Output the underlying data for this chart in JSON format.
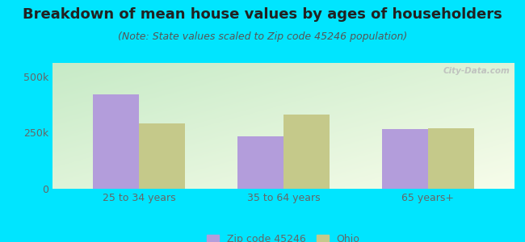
{
  "title": "Breakdown of mean house values by ages of householders",
  "subtitle": "(Note: State values scaled to Zip code 45246 population)",
  "categories": [
    "25 to 34 years",
    "35 to 64 years",
    "65 years+"
  ],
  "zip_values": [
    420000,
    235000,
    265000
  ],
  "ohio_values": [
    290000,
    330000,
    270000
  ],
  "zip_color": "#b39ddb",
  "ohio_color": "#c5c98a",
  "background_color": "#00e5ff",
  "ylim": [
    0,
    560000
  ],
  "yticks": [
    0,
    250000,
    500000
  ],
  "ytick_labels": [
    "0",
    "250k",
    "500k"
  ],
  "legend_zip": "Zip code 45246",
  "legend_ohio": "Ohio",
  "bar_width": 0.32,
  "title_fontsize": 13,
  "subtitle_fontsize": 9,
  "watermark": "City-Data.com",
  "title_color": "#222222",
  "subtitle_color": "#555555",
  "tick_color": "#666666"
}
